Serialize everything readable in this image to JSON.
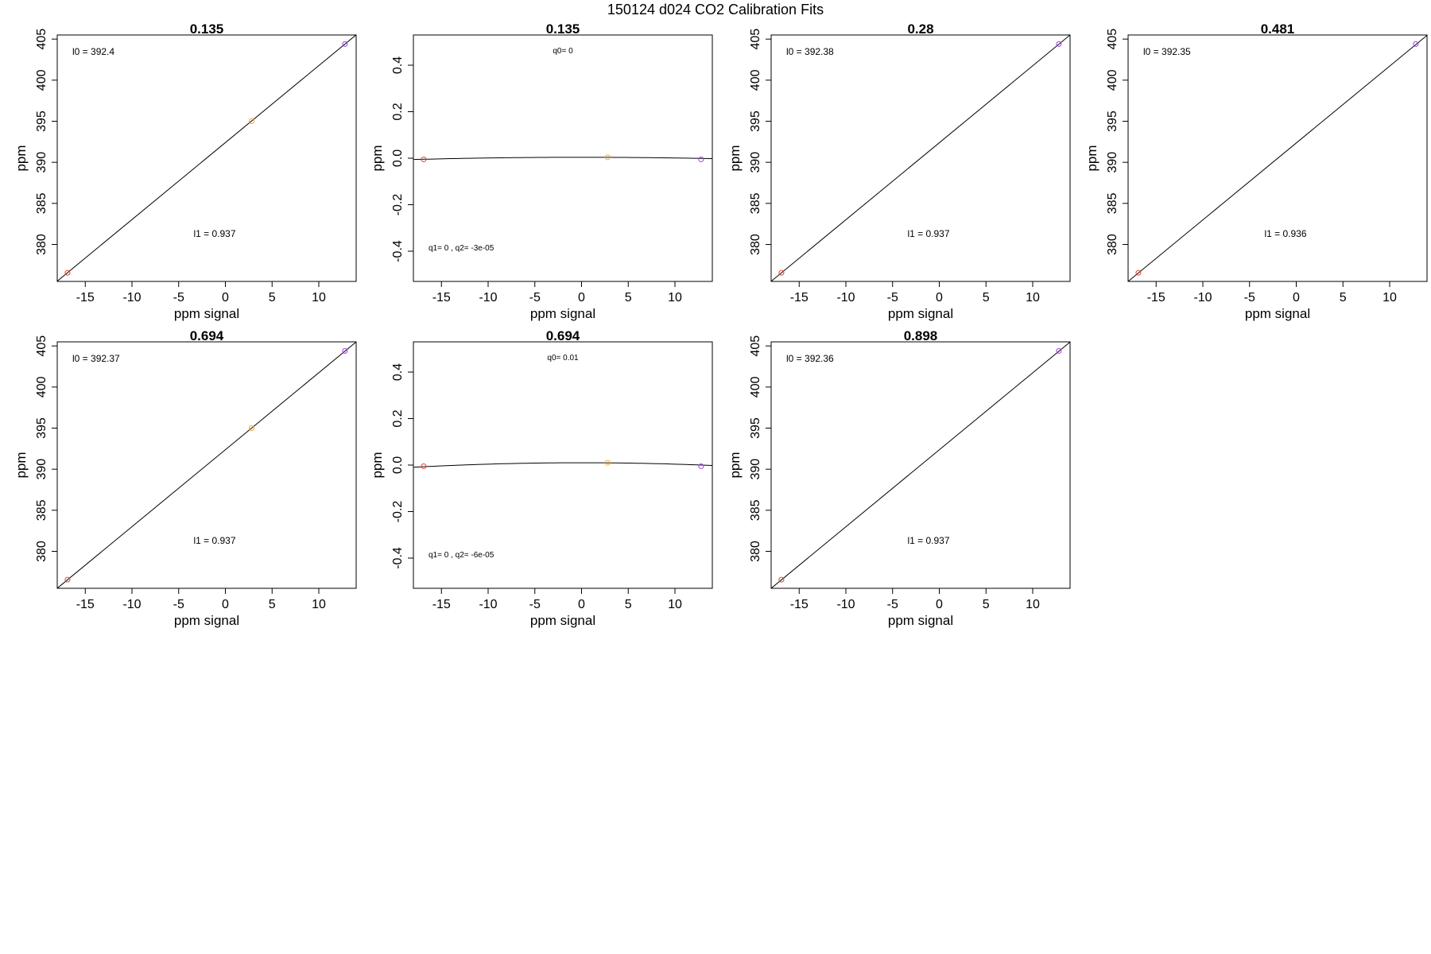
{
  "figure": {
    "title": "150124   d024   CO2 Calibration Fits"
  },
  "chart_data": [
    {
      "type": "line",
      "fit": "linear",
      "title": "0.135",
      "xlabel": "ppm signal",
      "ylabel": "ppm",
      "xlim": [
        -18,
        14
      ],
      "ylim": [
        375.5,
        405.5
      ],
      "xticks": [
        "-15",
        "-10",
        "-5",
        "0",
        "5",
        "10"
      ],
      "xtick_values": [
        -15,
        -10,
        -5,
        0,
        5,
        10
      ],
      "yticks": [
        "380",
        "385",
        "390",
        "395",
        "400",
        "405"
      ],
      "ytick_values": [
        380,
        385,
        390,
        395,
        400,
        405
      ],
      "line": {
        "slope": 0.937,
        "intercept": 392.4
      },
      "points": [
        {
          "x": -16.9,
          "y": 376.55,
          "color": "#e8412f"
        },
        {
          "x": 2.8,
          "y": 395.0,
          "color": "#f5a623"
        },
        {
          "x": 12.8,
          "y": 404.4,
          "color": "#9b3fe8"
        }
      ],
      "annotations": [
        {
          "text": "l0 =  392.4",
          "pos": "top-left"
        },
        {
          "text": "l1 =  0.937",
          "pos": "lower-center"
        }
      ]
    },
    {
      "type": "line",
      "fit": "quadratic",
      "title": "0.135",
      "xlabel": "ppm signal",
      "ylabel": "ppm",
      "xlim": [
        -18,
        14
      ],
      "ylim": [
        -0.53,
        0.53
      ],
      "xticks": [
        "-15",
        "-10",
        "-5",
        "0",
        "5",
        "10"
      ],
      "xtick_values": [
        -15,
        -10,
        -5,
        0,
        5,
        10
      ],
      "yticks": [
        "-0.4",
        "-0.2",
        "0.0",
        "0.2",
        "0.4"
      ],
      "ytick_values": [
        -0.4,
        -0.2,
        0,
        0.2,
        0.4
      ],
      "curve": {
        "q0": 0.004,
        "q1": 0,
        "q2": -3e-05
      },
      "points": [
        {
          "x": -16.9,
          "y": -0.005,
          "color": "#e8412f"
        },
        {
          "x": 2.8,
          "y": 0.004,
          "color": "#f5a623"
        },
        {
          "x": 12.8,
          "y": -0.005,
          "color": "#9b3fe8"
        }
      ],
      "annotations": [
        {
          "text": "q0= 0",
          "pos": "top-center"
        },
        {
          "text": "q1= 0 , q2= -3e-05",
          "pos": "bottom-left"
        }
      ]
    },
    {
      "type": "line",
      "fit": "linear",
      "title": "0.28",
      "xlabel": "ppm signal",
      "ylabel": "ppm",
      "xlim": [
        -18,
        14
      ],
      "ylim": [
        375.5,
        405.5
      ],
      "xticks": [
        "-15",
        "-10",
        "-5",
        "0",
        "5",
        "10"
      ],
      "xtick_values": [
        -15,
        -10,
        -5,
        0,
        5,
        10
      ],
      "yticks": [
        "380",
        "385",
        "390",
        "395",
        "400",
        "405"
      ],
      "ytick_values": [
        380,
        385,
        390,
        395,
        400,
        405
      ],
      "line": {
        "slope": 0.937,
        "intercept": 392.38
      },
      "points": [
        {
          "x": -16.9,
          "y": 376.55,
          "color": "#e8412f"
        },
        {
          "x": 12.8,
          "y": 404.4,
          "color": "#9b3fe8"
        }
      ],
      "annotations": [
        {
          "text": "l0 =  392.38",
          "pos": "top-left"
        },
        {
          "text": "l1 =  0.937",
          "pos": "lower-center"
        }
      ]
    },
    {
      "type": "line",
      "fit": "linear",
      "title": "0.481",
      "xlabel": "ppm signal",
      "ylabel": "ppm",
      "xlim": [
        -18,
        14
      ],
      "ylim": [
        375.5,
        405.5
      ],
      "xticks": [
        "-15",
        "-10",
        "-5",
        "0",
        "5",
        "10"
      ],
      "xtick_values": [
        -15,
        -10,
        -5,
        0,
        5,
        10
      ],
      "yticks": [
        "380",
        "385",
        "390",
        "395",
        "400",
        "405"
      ],
      "ytick_values": [
        380,
        385,
        390,
        395,
        400,
        405
      ],
      "line": {
        "slope": 0.936,
        "intercept": 392.35
      },
      "points": [
        {
          "x": -16.9,
          "y": 376.55,
          "color": "#e8412f"
        },
        {
          "x": 12.8,
          "y": 404.4,
          "color": "#9b3fe8"
        }
      ],
      "annotations": [
        {
          "text": "l0 =  392.35",
          "pos": "top-left"
        },
        {
          "text": "l1 =  0.936",
          "pos": "lower-center"
        }
      ]
    },
    {
      "type": "line",
      "fit": "linear",
      "title": "0.694",
      "xlabel": "ppm signal",
      "ylabel": "ppm",
      "xlim": [
        -18,
        14
      ],
      "ylim": [
        375.5,
        405.5
      ],
      "xticks": [
        "-15",
        "-10",
        "-5",
        "0",
        "5",
        "10"
      ],
      "xtick_values": [
        -15,
        -10,
        -5,
        0,
        5,
        10
      ],
      "yticks": [
        "380",
        "385",
        "390",
        "395",
        "400",
        "405"
      ],
      "ytick_values": [
        380,
        385,
        390,
        395,
        400,
        405
      ],
      "line": {
        "slope": 0.937,
        "intercept": 392.37
      },
      "points": [
        {
          "x": -16.9,
          "y": 376.55,
          "color": "#e8412f"
        },
        {
          "x": 2.8,
          "y": 395.0,
          "color": "#f5a623"
        },
        {
          "x": 12.8,
          "y": 404.4,
          "color": "#9b3fe8"
        }
      ],
      "annotations": [
        {
          "text": "l0 =  392.37",
          "pos": "top-left"
        },
        {
          "text": "l1 =  0.937",
          "pos": "lower-center"
        }
      ]
    },
    {
      "type": "line",
      "fit": "quadratic",
      "title": "0.694",
      "xlabel": "ppm signal",
      "ylabel": "ppm",
      "xlim": [
        -18,
        14
      ],
      "ylim": [
        -0.53,
        0.53
      ],
      "xticks": [
        "-15",
        "-10",
        "-5",
        "0",
        "5",
        "10"
      ],
      "xtick_values": [
        -15,
        -10,
        -5,
        0,
        5,
        10
      ],
      "yticks": [
        "-0.4",
        "-0.2",
        "0.0",
        "0.2",
        "0.4"
      ],
      "ytick_values": [
        -0.4,
        -0.2,
        0,
        0.2,
        0.4
      ],
      "curve": {
        "q0": 0.01,
        "q1": 0,
        "q2": -6e-05
      },
      "points": [
        {
          "x": -16.9,
          "y": -0.005,
          "color": "#e8412f"
        },
        {
          "x": 2.8,
          "y": 0.01,
          "color": "#f5a623"
        },
        {
          "x": 12.8,
          "y": -0.005,
          "color": "#9b3fe8"
        }
      ],
      "annotations": [
        {
          "text": "q0= 0.01",
          "pos": "top-center"
        },
        {
          "text": "q1= 0 , q2= -6e-05",
          "pos": "bottom-left"
        }
      ]
    },
    {
      "type": "line",
      "fit": "linear",
      "title": "0.898",
      "xlabel": "ppm signal",
      "ylabel": "ppm",
      "xlim": [
        -18,
        14
      ],
      "ylim": [
        375.5,
        405.5
      ],
      "xticks": [
        "-15",
        "-10",
        "-5",
        "0",
        "5",
        "10"
      ],
      "xtick_values": [
        -15,
        -10,
        -5,
        0,
        5,
        10
      ],
      "yticks": [
        "380",
        "385",
        "390",
        "395",
        "400",
        "405"
      ],
      "ytick_values": [
        380,
        385,
        390,
        395,
        400,
        405
      ],
      "line": {
        "slope": 0.937,
        "intercept": 392.36
      },
      "points": [
        {
          "x": -16.9,
          "y": 376.55,
          "color": "#e8412f"
        },
        {
          "x": 12.8,
          "y": 404.4,
          "color": "#9b3fe8"
        }
      ],
      "annotations": [
        {
          "text": "l0 =  392.36",
          "pos": "top-left"
        },
        {
          "text": "l1 =  0.937",
          "pos": "lower-center"
        }
      ]
    }
  ]
}
